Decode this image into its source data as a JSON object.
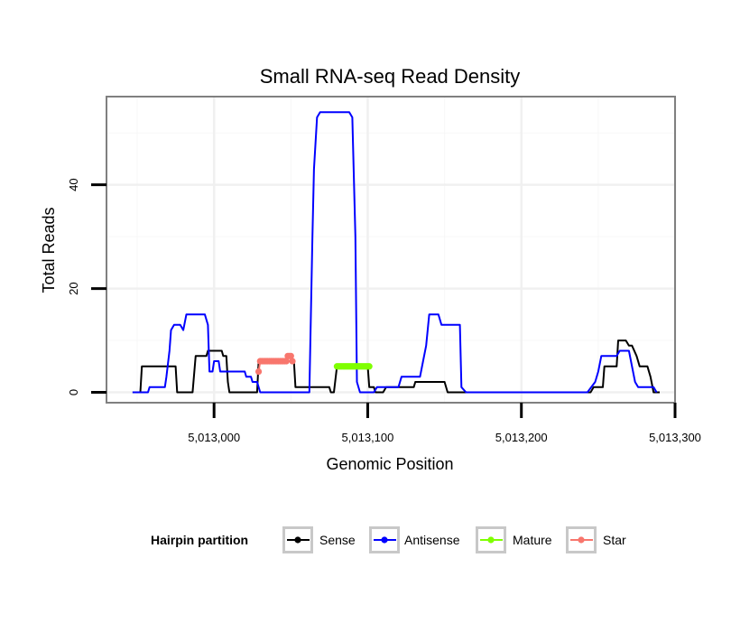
{
  "chart_data": {
    "type": "line",
    "title": "Small RNA-seq Read Density",
    "xlabel": "Genomic Position",
    "ylabel": "Total Reads",
    "xlim": [
      5012930,
      5013300
    ],
    "ylim": [
      -2,
      57
    ],
    "x_ticks": [
      5013000,
      5013100,
      5013200,
      5013300
    ],
    "x_tick_labels": [
      "5,013,000",
      "5,013,100",
      "5,013,200",
      "5,013,300"
    ],
    "y_ticks": [
      0,
      20,
      40
    ],
    "y_tick_labels": [
      "0",
      "20",
      "40"
    ],
    "y_minor_gridlines": [
      10,
      30,
      50
    ],
    "x_minor_gridlines": [
      5012950,
      5013050,
      5013150,
      5013250
    ],
    "grid": true,
    "legend": {
      "title": "Hairpin partition",
      "position": "bottom",
      "entries": [
        {
          "label": "Sense",
          "color": "#000000"
        },
        {
          "label": "Antisense",
          "color": "#0000ff"
        },
        {
          "label": "Mature",
          "color": "#7fff00"
        },
        {
          "label": "Star",
          "color": "#f8766d"
        }
      ]
    },
    "series": [
      {
        "name": "Sense",
        "color": "#000000",
        "points": [
          [
            5012947,
            0
          ],
          [
            5012952,
            0
          ],
          [
            5012953,
            5
          ],
          [
            5012975,
            5
          ],
          [
            5012976,
            0
          ],
          [
            5012986,
            0
          ],
          [
            5012988,
            7
          ],
          [
            5012995,
            7
          ],
          [
            5012996,
            8
          ],
          [
            5013005,
            8
          ],
          [
            5013006,
            7
          ],
          [
            5013008,
            7
          ],
          [
            5013009,
            2
          ],
          [
            5013010,
            0
          ],
          [
            5013028,
            0
          ],
          [
            5013029,
            6
          ],
          [
            5013052,
            6
          ],
          [
            5013053,
            1
          ],
          [
            5013075,
            1
          ],
          [
            5013076,
            0
          ],
          [
            5013078,
            0
          ],
          [
            5013080,
            5
          ],
          [
            5013100,
            5
          ],
          [
            5013101,
            1
          ],
          [
            5013104,
            1
          ],
          [
            5013105,
            0
          ],
          [
            5013110,
            0
          ],
          [
            5013112,
            1
          ],
          [
            5013130,
            1
          ],
          [
            5013131,
            2
          ],
          [
            5013150,
            2
          ],
          [
            5013152,
            0
          ],
          [
            5013245,
            0
          ],
          [
            5013247,
            1
          ],
          [
            5013253,
            1
          ],
          [
            5013254,
            5
          ],
          [
            5013262,
            5
          ],
          [
            5013263,
            10
          ],
          [
            5013268,
            10
          ],
          [
            5013270,
            9
          ],
          [
            5013272,
            9
          ],
          [
            5013275,
            7
          ],
          [
            5013277,
            5
          ],
          [
            5013282,
            5
          ],
          [
            5013284,
            3
          ],
          [
            5013286,
            0
          ],
          [
            5013290,
            0
          ]
        ]
      },
      {
        "name": "Antisense",
        "color": "#0000ff",
        "points": [
          [
            5012947,
            0
          ],
          [
            5012957,
            0
          ],
          [
            5012958,
            1
          ],
          [
            5012968,
            1
          ],
          [
            5012969,
            3
          ],
          [
            5012971,
            8
          ],
          [
            5012972,
            12
          ],
          [
            5012974,
            13
          ],
          [
            5012978,
            13
          ],
          [
            5012980,
            12
          ],
          [
            5012982,
            15
          ],
          [
            5012994,
            15
          ],
          [
            5012996,
            13
          ],
          [
            5012997,
            4
          ],
          [
            5012999,
            4
          ],
          [
            5013000,
            6
          ],
          [
            5013003,
            6
          ],
          [
            5013004,
            4
          ],
          [
            5013020,
            4
          ],
          [
            5013021,
            3
          ],
          [
            5013024,
            3
          ],
          [
            5013025,
            2
          ],
          [
            5013028,
            2
          ],
          [
            5013029,
            1
          ],
          [
            5013030,
            0
          ],
          [
            5013062,
            0
          ],
          [
            5013064,
            30
          ],
          [
            5013065,
            43
          ],
          [
            5013067,
            53
          ],
          [
            5013069,
            54
          ],
          [
            5013088,
            54
          ],
          [
            5013090,
            53
          ],
          [
            5013092,
            30
          ],
          [
            5013093,
            2
          ],
          [
            5013095,
            0
          ],
          [
            5013104,
            0
          ],
          [
            5013106,
            1
          ],
          [
            5013120,
            1
          ],
          [
            5013122,
            3
          ],
          [
            5013134,
            3
          ],
          [
            5013136,
            6
          ],
          [
            5013138,
            9
          ],
          [
            5013140,
            15
          ],
          [
            5013146,
            15
          ],
          [
            5013148,
            13
          ],
          [
            5013160,
            13
          ],
          [
            5013161,
            1
          ],
          [
            5013164,
            0
          ],
          [
            5013243,
            0
          ],
          [
            5013248,
            2
          ],
          [
            5013250,
            4
          ],
          [
            5013252,
            7
          ],
          [
            5013262,
            7
          ],
          [
            5013264,
            8
          ],
          [
            5013270,
            8
          ],
          [
            5013272,
            5
          ],
          [
            5013274,
            2
          ],
          [
            5013276,
            1
          ],
          [
            5013286,
            1
          ],
          [
            5013288,
            0
          ]
        ]
      },
      {
        "name": "Mature",
        "color": "#7fff00",
        "points": [
          [
            5013080,
            5
          ],
          [
            5013081,
            5
          ],
          [
            5013082,
            5
          ],
          [
            5013083,
            5
          ],
          [
            5013084,
            5
          ],
          [
            5013085,
            5
          ],
          [
            5013086,
            5
          ],
          [
            5013087,
            5
          ],
          [
            5013088,
            5
          ],
          [
            5013089,
            5
          ],
          [
            5013090,
            5
          ],
          [
            5013091,
            5
          ],
          [
            5013092,
            5
          ],
          [
            5013093,
            5
          ],
          [
            5013094,
            5
          ],
          [
            5013095,
            5
          ],
          [
            5013096,
            5
          ],
          [
            5013097,
            5
          ],
          [
            5013098,
            5
          ],
          [
            5013099,
            5
          ],
          [
            5013100,
            5
          ],
          [
            5013101,
            5
          ]
        ]
      },
      {
        "name": "Star",
        "color": "#f8766d",
        "points": [
          [
            5013029,
            4
          ],
          [
            5013030,
            6
          ],
          [
            5013031,
            6
          ],
          [
            5013032,
            6
          ],
          [
            5013033,
            6
          ],
          [
            5013034,
            6
          ],
          [
            5013035,
            6
          ],
          [
            5013036,
            6
          ],
          [
            5013037,
            6
          ],
          [
            5013038,
            6
          ],
          [
            5013039,
            6
          ],
          [
            5013040,
            6
          ],
          [
            5013041,
            6
          ],
          [
            5013042,
            6
          ],
          [
            5013043,
            6
          ],
          [
            5013044,
            6
          ],
          [
            5013045,
            6
          ],
          [
            5013046,
            6
          ],
          [
            5013047,
            6
          ],
          [
            5013048,
            7
          ],
          [
            5013049,
            7
          ],
          [
            5013050,
            7
          ],
          [
            5013051,
            6
          ]
        ]
      }
    ]
  }
}
